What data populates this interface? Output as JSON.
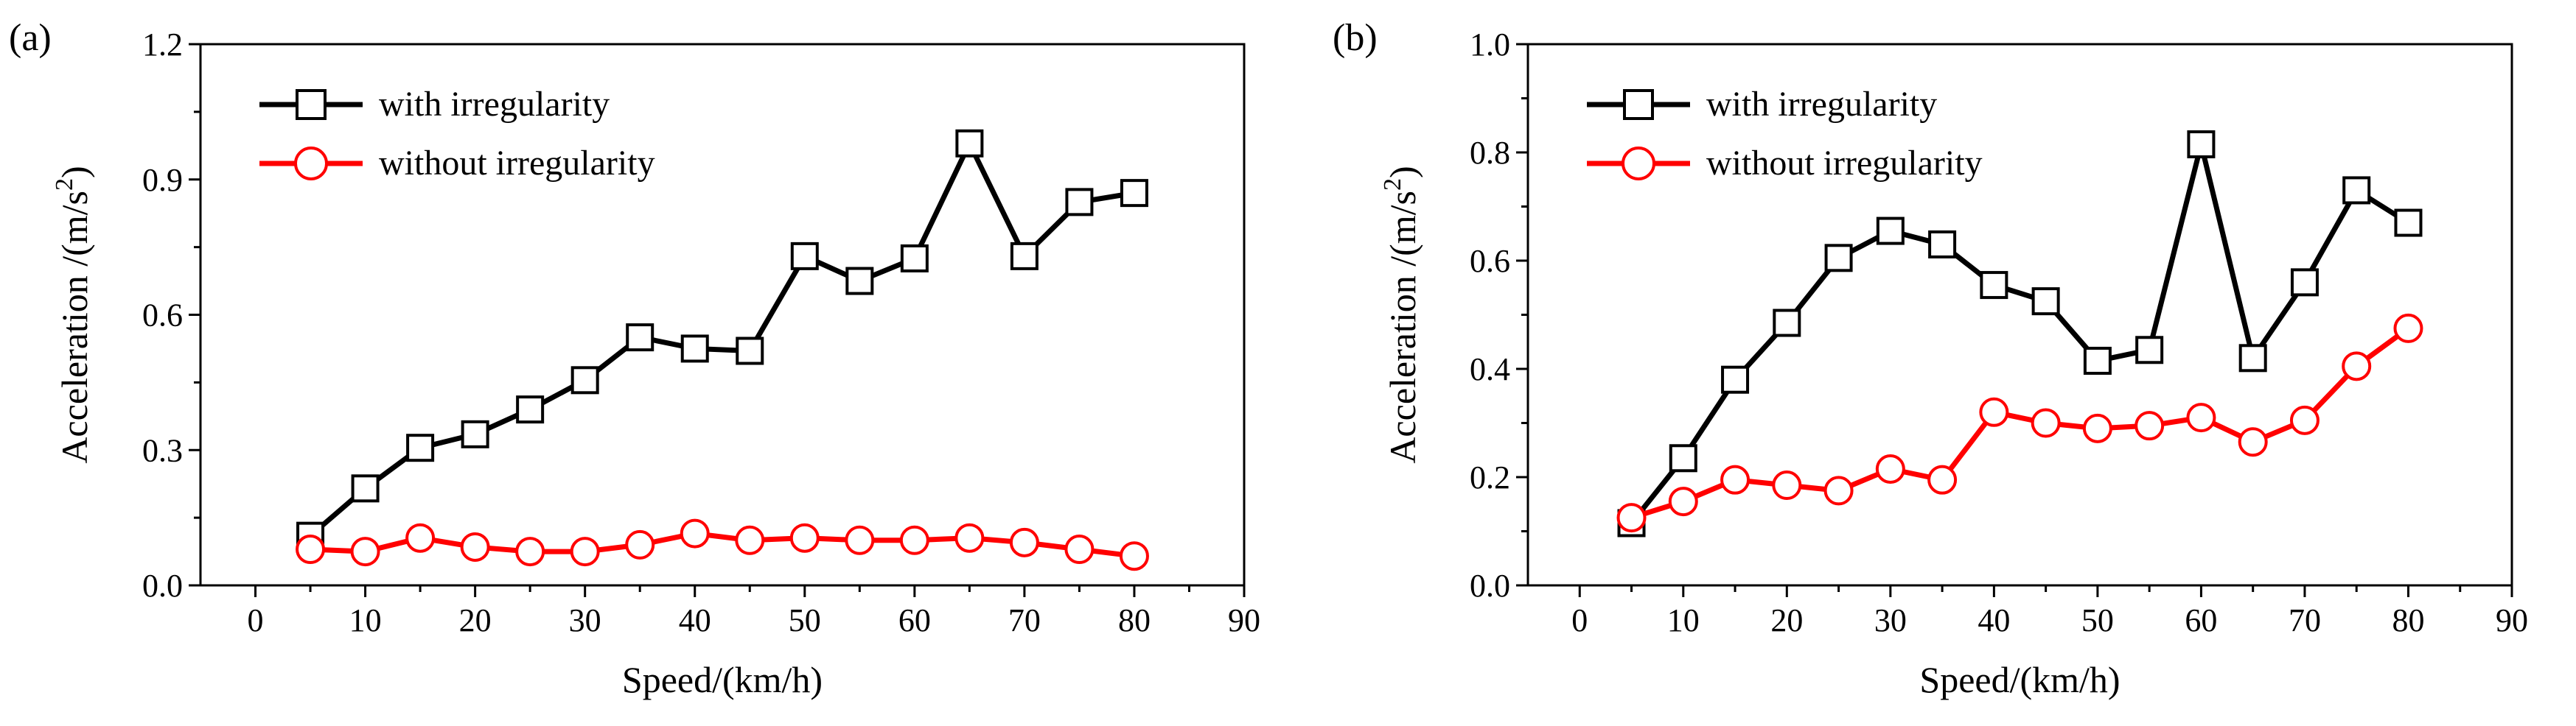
{
  "chart_data": [
    {
      "type": "line",
      "panel_label": "(a)",
      "xlabel": "Speed/(km/h)",
      "ylabel_main": "Acceleration /(m/s",
      "ylabel_sup": "2",
      "ylabel_close": ")",
      "xlim": [
        -5,
        90
      ],
      "ylim": [
        0,
        1.2
      ],
      "xticks": [
        0,
        10,
        20,
        30,
        40,
        50,
        60,
        70,
        80,
        90
      ],
      "xtick_labels": [
        "0",
        "10",
        "20",
        "30",
        "40",
        "50",
        "60",
        "70",
        "80",
        "90"
      ],
      "yticks": [
        0,
        0.3,
        0.6,
        0.9,
        1.2
      ],
      "ytick_labels": [
        "0.0",
        "0.3",
        "0.6",
        "0.9",
        "1.2"
      ],
      "legend_position": "top-left",
      "x": [
        5,
        10,
        15,
        20,
        25,
        30,
        35,
        40,
        45,
        50,
        55,
        60,
        65,
        70,
        75,
        80
      ],
      "series": [
        {
          "name": "with irregularity",
          "color": "#000000",
          "marker": "square",
          "values": [
            0.11,
            0.215,
            0.305,
            0.335,
            0.39,
            0.455,
            0.55,
            0.525,
            0.52,
            0.73,
            0.675,
            0.725,
            0.98,
            0.73,
            0.85,
            0.87
          ]
        },
        {
          "name": "without irregularity",
          "color": "#ff0000",
          "marker": "circle",
          "values": [
            0.08,
            0.075,
            0.105,
            0.085,
            0.075,
            0.075,
            0.09,
            0.115,
            0.1,
            0.105,
            0.1,
            0.1,
            0.105,
            0.095,
            0.08,
            0.065
          ]
        }
      ]
    },
    {
      "type": "line",
      "panel_label": "(b)",
      "xlabel": "Speed/(km/h)",
      "ylabel_main": "Acceleration /(m/s",
      "ylabel_sup": "2",
      "ylabel_close": ")",
      "xlim": [
        -5,
        90
      ],
      "ylim": [
        0,
        1.0
      ],
      "xticks": [
        0,
        10,
        20,
        30,
        40,
        50,
        60,
        70,
        80,
        90
      ],
      "xtick_labels": [
        "0",
        "10",
        "20",
        "30",
        "40",
        "50",
        "60",
        "70",
        "80",
        "90"
      ],
      "yticks": [
        0,
        0.2,
        0.4,
        0.6,
        0.8,
        1.0
      ],
      "ytick_labels": [
        "0.0",
        "0.2",
        "0.4",
        "0.6",
        "0.8",
        "1.0"
      ],
      "legend_position": "top-left",
      "x": [
        5,
        10,
        15,
        20,
        25,
        30,
        35,
        40,
        45,
        50,
        55,
        60,
        65,
        70,
        75,
        80
      ],
      "series": [
        {
          "name": "with irregularity",
          "color": "#000000",
          "marker": "square",
          "values": [
            0.115,
            0.235,
            0.38,
            0.485,
            0.605,
            0.655,
            0.63,
            0.555,
            0.525,
            0.415,
            0.435,
            0.815,
            0.42,
            0.56,
            0.73,
            0.67
          ]
        },
        {
          "name": "without irregularity",
          "color": "#ff0000",
          "marker": "circle",
          "values": [
            0.125,
            0.155,
            0.195,
            0.185,
            0.175,
            0.215,
            0.195,
            0.32,
            0.3,
            0.29,
            0.295,
            0.31,
            0.265,
            0.305,
            0.405,
            0.475
          ]
        }
      ]
    }
  ]
}
